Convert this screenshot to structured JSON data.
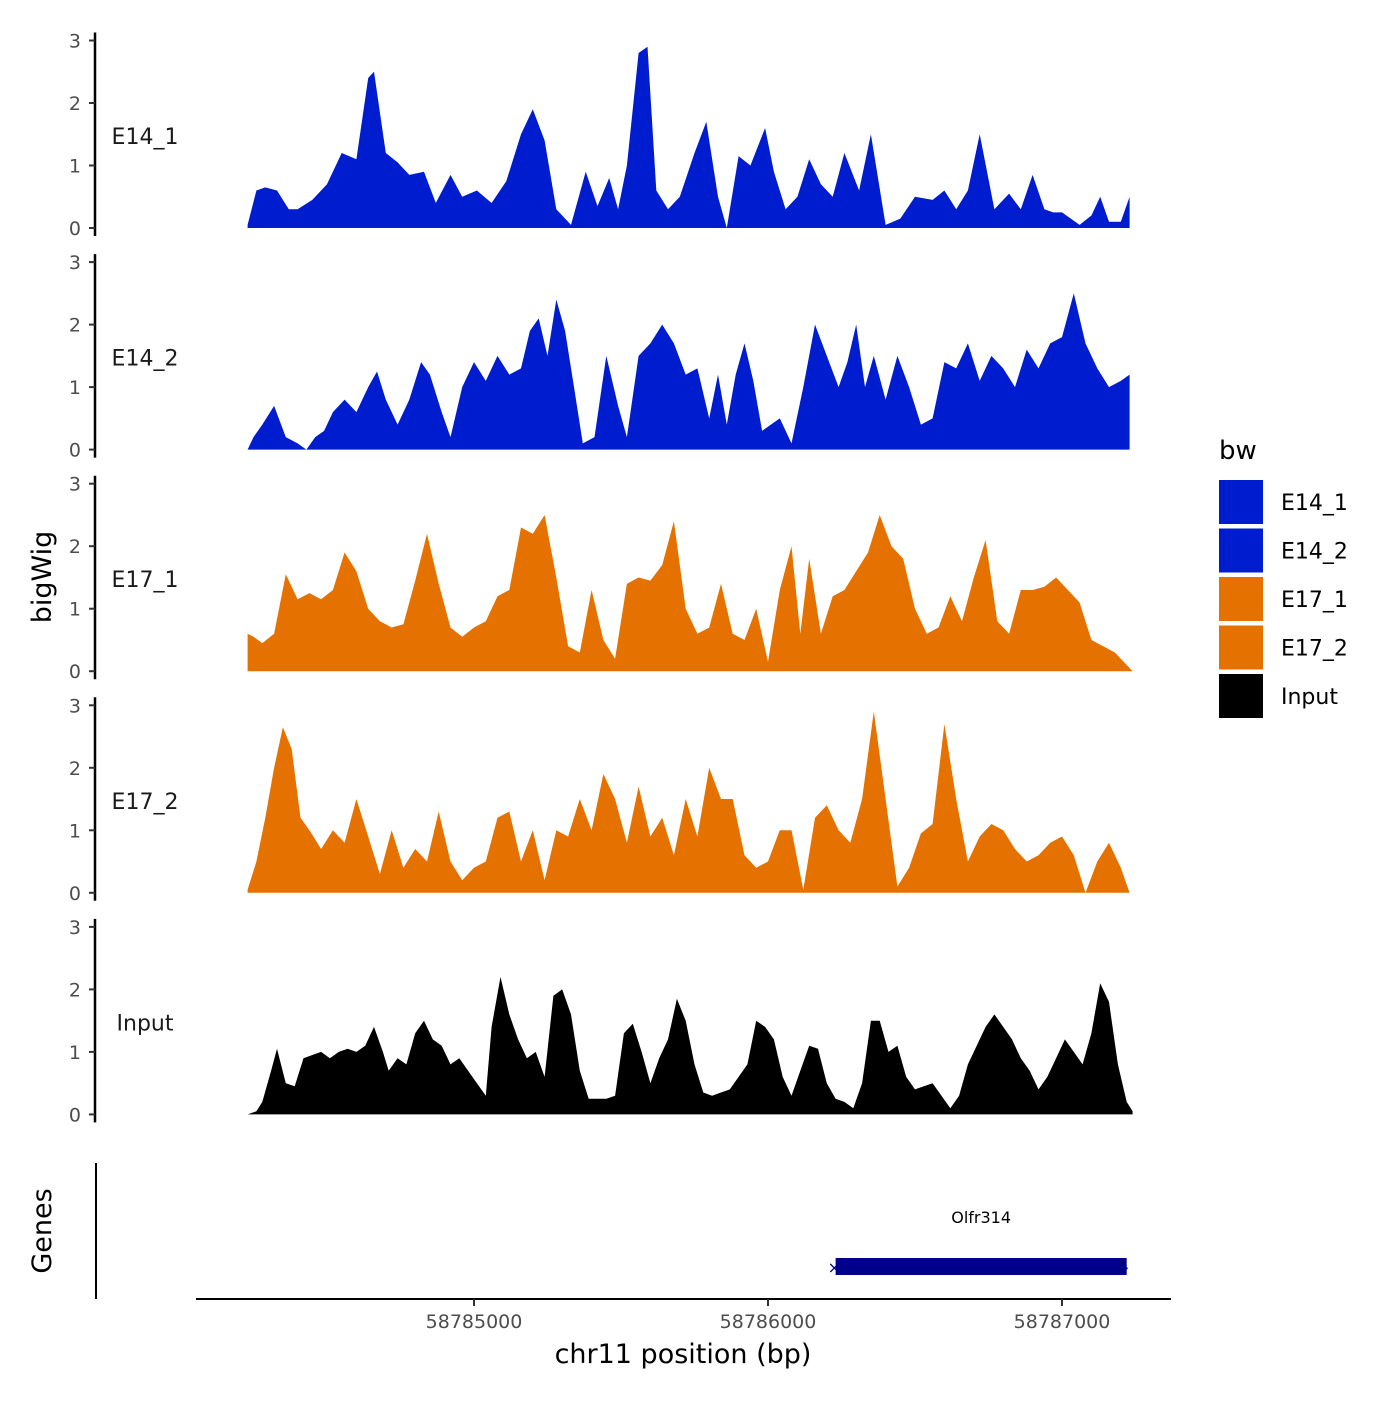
{
  "chart_data": {
    "type": "area",
    "ylabel": "bigWig",
    "xlabel": "chr11 position (bp)",
    "xlim": [
      58784070,
      58787280
    ],
    "x_ticks": [
      58785000,
      58786000,
      58787000
    ],
    "x_tick_labels": [
      "58785000",
      "58786000",
      "58787000"
    ],
    "ylim": [
      0,
      3
    ],
    "y_ticks": [
      0,
      1,
      2,
      3
    ],
    "y_tick_labels": [
      "0",
      "1",
      "2",
      "3"
    ],
    "grid": false,
    "colors": {
      "E14_1": "#001ccf",
      "E14_2": "#001ccf",
      "E17_1": "#e57200",
      "E17_2": "#e57200",
      "Input": "#000000"
    },
    "tracks": [
      {
        "name": "E14_1",
        "x": [
          58784230,
          58784260,
          58784290,
          58784330,
          58784370,
          58784400,
          58784450,
          58784500,
          58784550,
          58784600,
          58784640,
          58784660,
          58784700,
          58784740,
          58784780,
          58784830,
          58784870,
          58784920,
          58784960,
          58785010,
          58785060,
          58785110,
          58785160,
          58785200,
          58785240,
          58785280,
          58785330,
          58785380,
          58785420,
          58785460,
          58785490,
          58785520,
          58785560,
          58785590,
          58785620,
          58785660,
          58785700,
          58785750,
          58785790,
          58785830,
          58785860,
          58785900,
          58785940,
          58785990,
          58786020,
          58786060,
          58786100,
          58786140,
          58786180,
          58786220,
          58786260,
          58786310,
          58786350,
          58786400,
          58786450,
          58786500,
          58786560,
          58786600,
          58786640,
          58786680,
          58786720,
          58786770,
          58786820,
          58786860,
          58786900,
          58786940,
          58786970,
          58787000,
          58787030,
          58787060,
          58787100,
          58787130,
          58787160,
          58787200,
          58787230
        ],
        "y": [
          0.05,
          0.6,
          0.65,
          0.6,
          0.3,
          0.3,
          0.45,
          0.7,
          1.2,
          1.1,
          2.4,
          2.5,
          1.2,
          1.05,
          0.85,
          0.9,
          0.4,
          0.85,
          0.5,
          0.6,
          0.4,
          0.75,
          1.5,
          1.9,
          1.4,
          0.3,
          0.05,
          0.9,
          0.35,
          0.8,
          0.3,
          1.0,
          2.8,
          2.9,
          0.6,
          0.3,
          0.5,
          1.2,
          1.7,
          0.5,
          0.0,
          1.15,
          1.0,
          1.6,
          0.9,
          0.3,
          0.5,
          1.1,
          0.7,
          0.5,
          1.2,
          0.6,
          1.5,
          0.05,
          0.15,
          0.5,
          0.45,
          0.6,
          0.3,
          0.6,
          1.5,
          0.3,
          0.55,
          0.3,
          0.85,
          0.3,
          0.25,
          0.25,
          0.15,
          0.05,
          0.2,
          0.5,
          0.1,
          0.1,
          0.5
        ]
      },
      {
        "name": "E14_2",
        "x": [
          58784230,
          58784250,
          58784280,
          58784320,
          58784360,
          58784400,
          58784430,
          58784460,
          58784490,
          58784520,
          58784560,
          58784600,
          58784640,
          58784670,
          58784700,
          58784740,
          58784780,
          58784820,
          58784850,
          58784890,
          58784920,
          58784960,
          58785000,
          58785040,
          58785080,
          58785120,
          58785160,
          58785190,
          58785220,
          58785250,
          58785280,
          58785310,
          58785340,
          58785370,
          58785410,
          58785450,
          58785490,
          58785520,
          58785560,
          58785600,
          58785640,
          58785680,
          58785720,
          58785760,
          58785800,
          58785830,
          58785860,
          58785890,
          58785920,
          58785950,
          58785980,
          58786010,
          58786040,
          58786080,
          58786120,
          58786160,
          58786200,
          58786240,
          58786270,
          58786300,
          58786330,
          58786360,
          58786400,
          58786440,
          58786480,
          58786520,
          58786560,
          58786600,
          58786640,
          58786680,
          58786720,
          58786760,
          58786800,
          58786840,
          58786880,
          58786920,
          58786960,
          58787000,
          58787040,
          58787080,
          58787120,
          58787160,
          58787200,
          58787230
        ],
        "y": [
          0.0,
          0.2,
          0.4,
          0.7,
          0.2,
          0.1,
          0.0,
          0.2,
          0.3,
          0.6,
          0.8,
          0.6,
          1.0,
          1.25,
          0.8,
          0.4,
          0.8,
          1.4,
          1.2,
          0.6,
          0.2,
          1.0,
          1.4,
          1.1,
          1.5,
          1.2,
          1.3,
          1.9,
          2.1,
          1.5,
          2.4,
          1.9,
          1.0,
          0.1,
          0.2,
          1.5,
          0.7,
          0.2,
          1.5,
          1.7,
          2.0,
          1.7,
          1.2,
          1.3,
          0.5,
          1.2,
          0.4,
          1.2,
          1.7,
          1.1,
          0.3,
          0.4,
          0.5,
          0.1,
          1.0,
          2.0,
          1.5,
          1.0,
          1.4,
          2.0,
          1.0,
          1.5,
          0.8,
          1.5,
          1.0,
          0.4,
          0.5,
          1.4,
          1.3,
          1.7,
          1.1,
          1.5,
          1.3,
          1.0,
          1.6,
          1.3,
          1.7,
          1.8,
          2.5,
          1.7,
          1.3,
          1.0,
          1.1,
          1.2
        ]
      },
      {
        "name": "E17_1",
        "x": [
          58784230,
          58784250,
          58784280,
          58784320,
          58784360,
          58784400,
          58784440,
          58784480,
          58784520,
          58784560,
          58784600,
          58784640,
          58784680,
          58784720,
          58784760,
          58784800,
          58784840,
          58784880,
          58784920,
          58784960,
          58785000,
          58785040,
          58785080,
          58785120,
          58785160,
          58785200,
          58785240,
          58785280,
          58785320,
          58785360,
          58785400,
          58785440,
          58785480,
          58785520,
          58785560,
          58785600,
          58785640,
          58785680,
          58785720,
          58785760,
          58785800,
          58785840,
          58785880,
          58785920,
          58785960,
          58786000,
          58786040,
          58786080,
          58786110,
          58786140,
          58786180,
          58786220,
          58786260,
          58786300,
          58786340,
          58786380,
          58786420,
          58786460,
          58786500,
          58786540,
          58786580,
          58786620,
          58786660,
          58786700,
          58786740,
          58786780,
          58786820,
          58786860,
          58786900,
          58786940,
          58786980,
          58787020,
          58787060,
          58787100,
          58787140,
          58787180,
          58787220,
          58787240
        ],
        "y": [
          0.6,
          0.55,
          0.45,
          0.6,
          1.55,
          1.15,
          1.25,
          1.15,
          1.3,
          1.9,
          1.6,
          1.0,
          0.8,
          0.7,
          0.75,
          1.45,
          2.2,
          1.4,
          0.7,
          0.55,
          0.7,
          0.8,
          1.2,
          1.3,
          2.3,
          2.2,
          2.5,
          1.5,
          0.4,
          0.3,
          1.3,
          0.5,
          0.2,
          1.4,
          1.5,
          1.45,
          1.7,
          2.4,
          1.0,
          0.6,
          0.7,
          1.4,
          0.6,
          0.5,
          1.0,
          0.15,
          1.3,
          2.0,
          0.6,
          1.8,
          0.6,
          1.2,
          1.3,
          1.6,
          1.9,
          2.5,
          2.0,
          1.8,
          1.0,
          0.6,
          0.7,
          1.2,
          0.8,
          1.5,
          2.1,
          0.8,
          0.6,
          1.3,
          1.3,
          1.35,
          1.5,
          1.3,
          1.1,
          0.5,
          0.4,
          0.3,
          0.1,
          0.0
        ]
      },
      {
        "name": "E17_2",
        "x": [
          58784230,
          58784260,
          58784290,
          58784320,
          58784350,
          58784380,
          58784410,
          58784440,
          58784480,
          58784520,
          58784560,
          58784600,
          58784640,
          58784680,
          58784720,
          58784760,
          58784800,
          58784840,
          58784880,
          58784920,
          58784960,
          58785000,
          58785040,
          58785080,
          58785120,
          58785160,
          58785200,
          58785240,
          58785280,
          58785320,
          58785360,
          58785400,
          58785440,
          58785480,
          58785520,
          58785560,
          58785600,
          58785640,
          58785680,
          58785720,
          58785760,
          58785800,
          58785840,
          58785880,
          58785920,
          58785960,
          58786000,
          58786040,
          58786080,
          58786120,
          58786160,
          58786200,
          58786240,
          58786280,
          58786320,
          58786360,
          58786400,
          58786440,
          58786480,
          58786520,
          58786560,
          58786600,
          58786640,
          58786680,
          58786720,
          58786760,
          58786800,
          58786840,
          58786880,
          58786920,
          58786960,
          58787000,
          58787040,
          58787080,
          58787120,
          58787160,
          58787200,
          58787230
        ],
        "y": [
          0.05,
          0.5,
          1.2,
          2.0,
          2.65,
          2.3,
          1.2,
          1.0,
          0.7,
          1.0,
          0.8,
          1.5,
          0.9,
          0.3,
          1.0,
          0.4,
          0.7,
          0.5,
          1.3,
          0.5,
          0.2,
          0.4,
          0.5,
          1.2,
          1.3,
          0.5,
          1.0,
          0.2,
          1.0,
          0.9,
          1.5,
          1.0,
          1.9,
          1.5,
          0.8,
          1.7,
          0.9,
          1.2,
          0.6,
          1.5,
          0.9,
          2.0,
          1.5,
          1.5,
          0.6,
          0.4,
          0.5,
          1.0,
          1.0,
          0.05,
          1.2,
          1.4,
          1.0,
          0.8,
          1.5,
          2.9,
          1.5,
          0.1,
          0.4,
          0.95,
          1.1,
          2.7,
          1.5,
          0.5,
          0.9,
          1.1,
          1.0,
          0.7,
          0.5,
          0.6,
          0.8,
          0.9,
          0.6,
          0.0,
          0.5,
          0.8,
          0.4,
          0.0
        ]
      },
      {
        "name": "Input",
        "x": [
          58784230,
          58784260,
          58784280,
          58784310,
          58784330,
          58784360,
          58784390,
          58784420,
          58784450,
          58784480,
          58784510,
          58784540,
          58784570,
          58784600,
          58784630,
          58784660,
          58784690,
          58784710,
          58784740,
          58784770,
          58784800,
          58784830,
          58784860,
          58784890,
          58784920,
          58784950,
          58784980,
          58785010,
          58785040,
          58785060,
          58785090,
          58785120,
          58785150,
          58785180,
          58785210,
          58785240,
          58785270,
          58785300,
          58785330,
          58785360,
          58785390,
          58785420,
          58785450,
          58785480,
          58785510,
          58785540,
          58785570,
          58785600,
          58785630,
          58785660,
          58785690,
          58785720,
          58785750,
          58785780,
          58785810,
          58785840,
          58785870,
          58785900,
          58785930,
          58785960,
          58785990,
          58786020,
          58786050,
          58786080,
          58786110,
          58786140,
          58786170,
          58786200,
          58786230,
          58786260,
          58786290,
          58786320,
          58786350,
          58786380,
          58786410,
          58786440,
          58786470,
          58786500,
          58786530,
          58786560,
          58786590,
          58786620,
          58786650,
          58786680,
          58786710,
          58786740,
          58786770,
          58786800,
          58786830,
          58786860,
          58786890,
          58786920,
          58786950,
          58786980,
          58787010,
          58787040,
          58787070,
          58787100,
          58787130,
          58787160,
          58787190,
          58787220,
          58787240
        ],
        "y": [
          0.0,
          0.05,
          0.2,
          0.7,
          1.05,
          0.5,
          0.45,
          0.9,
          0.95,
          1.0,
          0.9,
          1.0,
          1.05,
          1.0,
          1.1,
          1.4,
          1.0,
          0.7,
          0.9,
          0.8,
          1.3,
          1.5,
          1.2,
          1.1,
          0.8,
          0.9,
          0.7,
          0.5,
          0.3,
          1.4,
          2.2,
          1.6,
          1.2,
          0.9,
          1.0,
          0.6,
          1.9,
          2.0,
          1.6,
          0.7,
          0.25,
          0.25,
          0.25,
          0.3,
          1.3,
          1.45,
          1.0,
          0.5,
          0.9,
          1.2,
          1.85,
          1.5,
          0.8,
          0.35,
          0.3,
          0.35,
          0.4,
          0.6,
          0.8,
          1.5,
          1.4,
          1.2,
          0.6,
          0.3,
          0.7,
          1.1,
          1.05,
          0.5,
          0.25,
          0.2,
          0.1,
          0.5,
          1.5,
          1.5,
          1.0,
          1.1,
          0.6,
          0.4,
          0.45,
          0.5,
          0.3,
          0.1,
          0.3,
          0.8,
          1.1,
          1.4,
          1.6,
          1.4,
          1.2,
          0.9,
          0.7,
          0.4,
          0.6,
          0.9,
          1.2,
          1.0,
          0.8,
          1.3,
          2.1,
          1.8,
          0.8,
          0.2,
          0.05
        ]
      }
    ],
    "legend": {
      "title": "bw",
      "position": "right",
      "items": [
        "E14_1",
        "E14_2",
        "E17_1",
        "E17_2",
        "Input"
      ]
    },
    "genes_panel": {
      "label": "Genes",
      "color": "#00008b",
      "genes": [
        {
          "name": "Olfr314",
          "start": 58786230,
          "end": 58787220
        }
      ]
    }
  }
}
